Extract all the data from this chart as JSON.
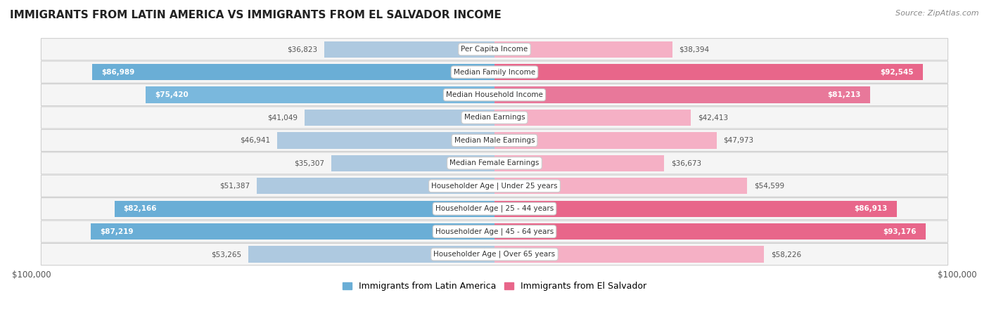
{
  "title": "IMMIGRANTS FROM LATIN AMERICA VS IMMIGRANTS FROM EL SALVADOR INCOME",
  "source": "Source: ZipAtlas.com",
  "categories": [
    "Per Capita Income",
    "Median Family Income",
    "Median Household Income",
    "Median Earnings",
    "Median Male Earnings",
    "Median Female Earnings",
    "Householder Age | Under 25 years",
    "Householder Age | 25 - 44 years",
    "Householder Age | 45 - 64 years",
    "Householder Age | Over 65 years"
  ],
  "latin_america": [
    36823,
    86989,
    75420,
    41049,
    46941,
    35307,
    51387,
    82166,
    87219,
    53265
  ],
  "el_salvador": [
    38394,
    92545,
    81213,
    42413,
    47973,
    36673,
    54599,
    86913,
    93176,
    58226
  ],
  "latin_america_labels": [
    "$36,823",
    "$86,989",
    "$75,420",
    "$41,049",
    "$46,941",
    "$35,307",
    "$51,387",
    "$82,166",
    "$87,219",
    "$53,265"
  ],
  "el_salvador_labels": [
    "$38,394",
    "$92,545",
    "$81,213",
    "$42,413",
    "$47,973",
    "$36,673",
    "$54,599",
    "$86,913",
    "$93,176",
    "$58,226"
  ],
  "latin_inside": [
    false,
    true,
    true,
    false,
    false,
    false,
    false,
    true,
    true,
    false
  ],
  "el_salvador_inside": [
    false,
    true,
    true,
    false,
    false,
    false,
    false,
    true,
    true,
    false
  ],
  "max_value": 100000,
  "color_latin_dark": "#6aaed6",
  "color_latin_light": "#aec9e0",
  "color_el_salvador_dark": "#e8668a",
  "color_el_salvador_light": "#f5b0c5",
  "bg_color": "#f0f0f0",
  "bg_row": "#f2f2f2",
  "label_outside_color": "#555555",
  "label_inside_color": "#ffffff",
  "legend_latin": "Immigrants from Latin America",
  "legend_el_salvador": "Immigrants from El Salvador",
  "bar_colors_latin": [
    "#aec9e0",
    "#6aaed6",
    "#7ab8dd",
    "#aec9e0",
    "#aec9e0",
    "#aec9e0",
    "#aec9e0",
    "#6aaed6",
    "#6aaed6",
    "#aec9e0"
  ],
  "bar_colors_es": [
    "#f5b0c5",
    "#e8668a",
    "#e8789a",
    "#f5b0c5",
    "#f5b0c5",
    "#f5b0c5",
    "#f5b0c5",
    "#e8668a",
    "#e8668a",
    "#f5b0c5"
  ]
}
